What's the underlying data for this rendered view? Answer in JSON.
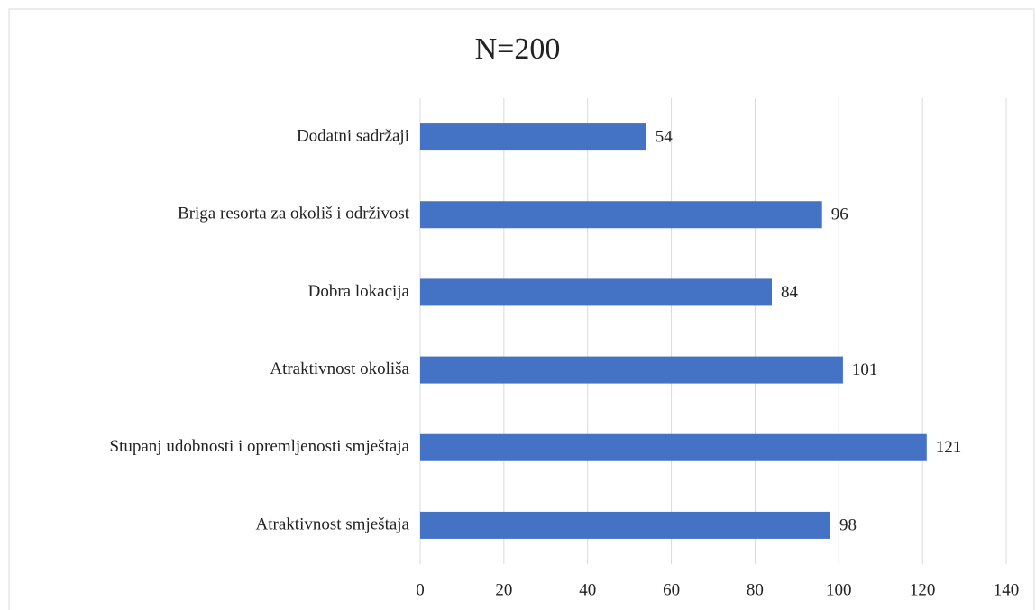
{
  "chart_data": {
    "type": "hbar",
    "title": "N=200",
    "categories": [
      "Dodatni sadržaji",
      "Briga resorta za okoliš i održivost",
      "Dobra lokacija",
      "Atraktivnost okoliša",
      "Stupanj udobnosti i opremljenosti smještaja",
      "Atraktivnost smještaja"
    ],
    "values": [
      54,
      96,
      84,
      101,
      121,
      98
    ],
    "color": "#4472c4",
    "xlim": [
      0,
      140
    ],
    "xticks": [
      0,
      20,
      40,
      60,
      80,
      100,
      120,
      140
    ],
    "grid": true
  }
}
